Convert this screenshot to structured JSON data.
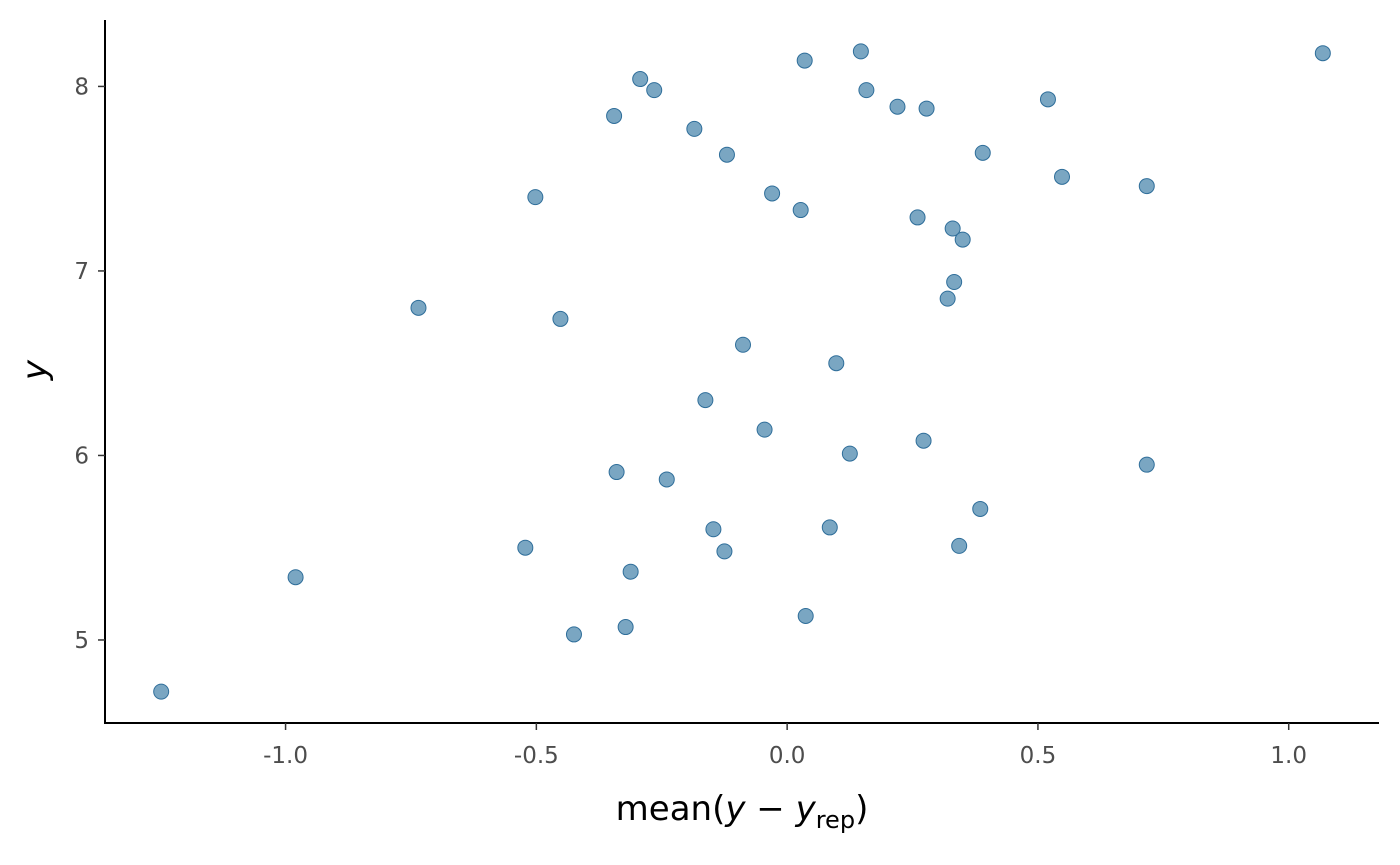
{
  "chart_data": {
    "type": "scatter",
    "xlabel": {
      "prefix": "mean(",
      "var": "y",
      "minus": " − ",
      "var2": "y",
      "sub": "rep",
      "suffix": ")"
    },
    "ylabel": "y",
    "xlim": [
      -1.36,
      1.18
    ],
    "ylim": [
      4.55,
      8.36
    ],
    "x_ticks": [
      {
        "value": -1.0,
        "label": "-1.0"
      },
      {
        "value": -0.5,
        "label": "-0.5"
      },
      {
        "value": 0.0,
        "label": "0.0"
      },
      {
        "value": 0.5,
        "label": "0.5"
      },
      {
        "value": 1.0,
        "label": "1.0"
      }
    ],
    "y_ticks": [
      {
        "value": 5,
        "label": "5"
      },
      {
        "value": 6,
        "label": "6"
      },
      {
        "value": 7,
        "label": "7"
      },
      {
        "value": 8,
        "label": "8"
      }
    ],
    "grid": false,
    "point_fill": "#7aa6c2",
    "point_stroke": "#2f6e9a",
    "points": [
      {
        "x": 0.147,
        "y": 8.19
      },
      {
        "x": 1.068,
        "y": 8.18
      },
      {
        "x": 0.035,
        "y": 8.14
      },
      {
        "x": -0.293,
        "y": 8.04
      },
      {
        "x": -0.265,
        "y": 7.98
      },
      {
        "x": 0.158,
        "y": 7.98
      },
      {
        "x": 0.52,
        "y": 7.93
      },
      {
        "x": 0.22,
        "y": 7.89
      },
      {
        "x": 0.278,
        "y": 7.88
      },
      {
        "x": -0.345,
        "y": 7.84
      },
      {
        "x": -0.185,
        "y": 7.77
      },
      {
        "x": 0.39,
        "y": 7.64
      },
      {
        "x": -0.12,
        "y": 7.63
      },
      {
        "x": 0.548,
        "y": 7.51
      },
      {
        "x": 0.717,
        "y": 7.46
      },
      {
        "x": -0.03,
        "y": 7.42
      },
      {
        "x": -0.502,
        "y": 7.4
      },
      {
        "x": 0.027,
        "y": 7.33
      },
      {
        "x": 0.26,
        "y": 7.29
      },
      {
        "x": 0.33,
        "y": 7.23
      },
      {
        "x": 0.35,
        "y": 7.17
      },
      {
        "x": 0.333,
        "y": 6.94
      },
      {
        "x": 0.32,
        "y": 6.85
      },
      {
        "x": -0.735,
        "y": 6.8
      },
      {
        "x": -0.452,
        "y": 6.74
      },
      {
        "x": -0.088,
        "y": 6.6
      },
      {
        "x": 0.098,
        "y": 6.5
      },
      {
        "x": -0.163,
        "y": 6.3
      },
      {
        "x": -0.045,
        "y": 6.14
      },
      {
        "x": 0.272,
        "y": 6.08
      },
      {
        "x": 0.125,
        "y": 6.01
      },
      {
        "x": 0.717,
        "y": 5.95
      },
      {
        "x": -0.34,
        "y": 5.91
      },
      {
        "x": -0.24,
        "y": 5.87
      },
      {
        "x": 0.385,
        "y": 5.71
      },
      {
        "x": 0.085,
        "y": 5.61
      },
      {
        "x": -0.147,
        "y": 5.6
      },
      {
        "x": 0.343,
        "y": 5.51
      },
      {
        "x": -0.522,
        "y": 5.5
      },
      {
        "x": -0.125,
        "y": 5.48
      },
      {
        "x": -0.312,
        "y": 5.37
      },
      {
        "x": -0.98,
        "y": 5.34
      },
      {
        "x": 0.037,
        "y": 5.13
      },
      {
        "x": -0.322,
        "y": 5.07
      },
      {
        "x": -0.425,
        "y": 5.03
      },
      {
        "x": -1.248,
        "y": 4.72
      }
    ]
  }
}
